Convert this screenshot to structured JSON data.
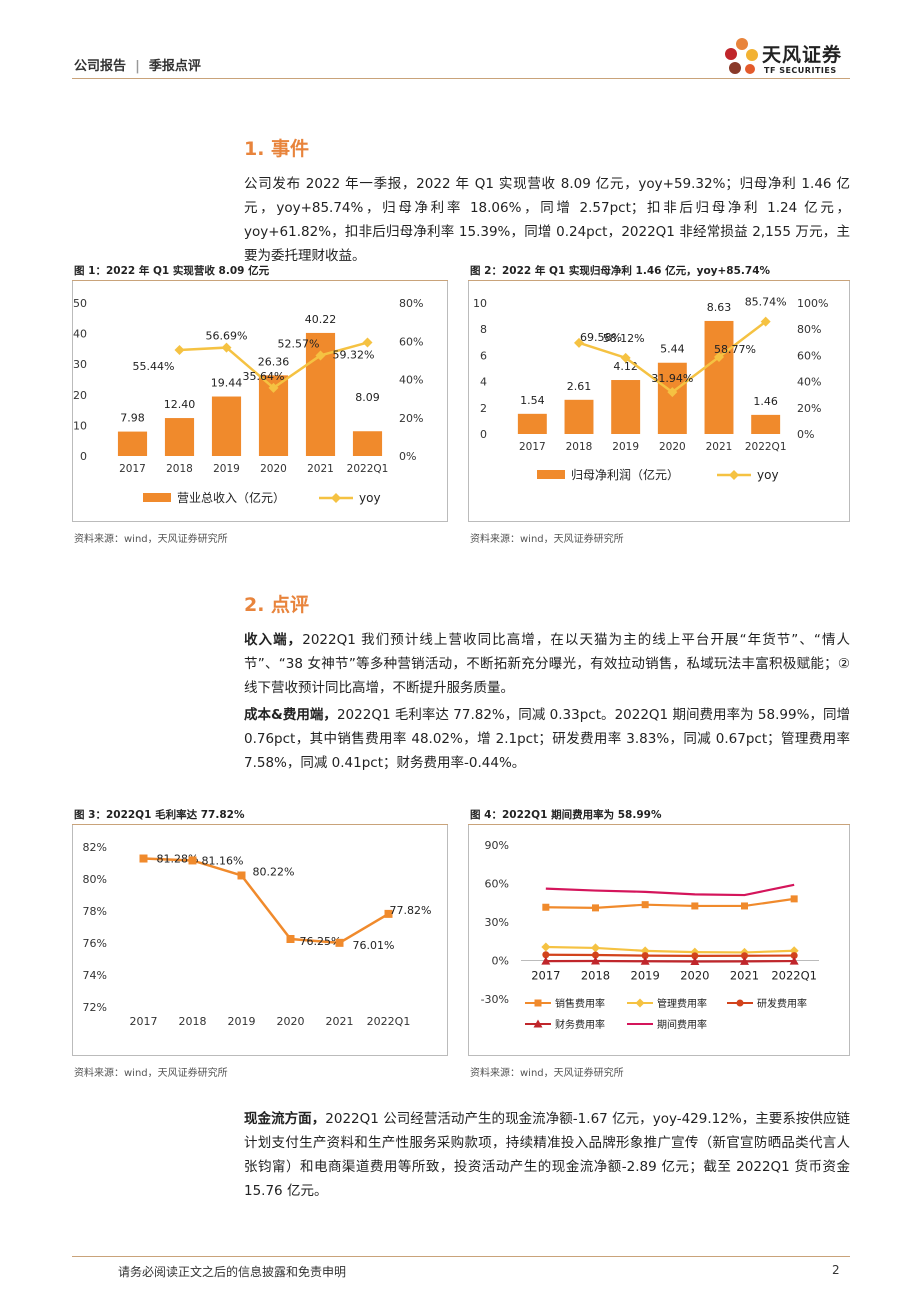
{
  "header": {
    "report_type": "公司报告",
    "sub_type": "季报点评",
    "logo_cn": "天风证券",
    "logo_en": "TF SECURITIES"
  },
  "section1": {
    "title": "1. 事件",
    "body": "公司发布 2022 年一季报，2022 年 Q1 实现营收 8.09 亿元，yoy+59.32%；归母净利 1.46 亿元，yoy+85.74%，归母净利率 18.06%，同增 2.57pct；扣非后归母净利 1.24 亿元，yoy+61.82%，扣非后归母净利率 15.39%，同增 0.24pct，2022Q1 非经常损益 2,155 万元，主要为委托理财收益。"
  },
  "section2": {
    "title": "2. 点评",
    "p1_lead": "收入端，",
    "p1_body": "2022Q1 我们预计线上营收同比高增，在以天猫为主的线上平台开展“年货节”、“情人节”、“38 女神节”等多种营销活动，不断拓新充分曝光，有效拉动销售，私域玩法丰富积极赋能；②线下营收预计同比高增，不断提升服务质量。",
    "p2_lead": "成本&费用端，",
    "p2_body": "2022Q1 毛利率达 77.82%，同减 0.33pct。2022Q1 期间费用率为 58.99%，同增 0.76pct，其中销售费用率 48.02%，增 2.1pct；研发费用率 3.83%，同减 0.67pct；管理费用率 7.58%，同减 0.41pct；财务费用率-0.44%。",
    "p3_lead": "现金流方面，",
    "p3_body": "2022Q1 公司经营活动产生的现金流净额-1.67 亿元，yoy-429.12%，主要系按供应链计划支付生产资料和生产性服务采购款项，持续精准投入品牌形象推广宣传（新官宣防晒品类代言人张钧甯）和电商渠道费用等所致，投资活动产生的现金流净额-2.89 亿元；截至 2022Q1 货币资金 15.76 亿元。"
  },
  "figures": {
    "fig1_title": "图 1：2022 年 Q1 实现营收 8.09 亿元",
    "fig2_title": "图 2：2022 年 Q1 实现归母净利 1.46 亿元，yoy+85.74%",
    "fig3_title": "图 3：2022Q1 毛利率达 77.82%",
    "fig4_title": "图 4：2022Q1 期间费用率为 58.99%",
    "source": "资料来源：wind，天风证券研究所"
  },
  "footer": {
    "disclaimer": "请务必阅读正文之后的信息披露和免责申明",
    "page": "2"
  },
  "colors": {
    "accent": "#e8843c",
    "bar": "#f08a2c",
    "yoy": "#f5c242",
    "sales": "#f08a2c",
    "admin": "#f5c242",
    "rd": "#d2431c",
    "fin": "#c0262b",
    "period": "#d4155b"
  },
  "chart_data": [
    {
      "type": "bar",
      "categories": [
        "2017",
        "2018",
        "2019",
        "2020",
        "2021",
        "2022Q1"
      ],
      "series": [
        {
          "name": "营业总收入（亿元）",
          "values": [
            7.98,
            12.4,
            19.44,
            26.36,
            40.22,
            8.09
          ],
          "labels": [
            "7.98",
            "12.40",
            "19.44",
            "26.36",
            "40.22",
            "8.09"
          ],
          "axis": "left"
        },
        {
          "name": "yoy",
          "type": "line",
          "values": [
            null,
            55.44,
            56.69,
            35.64,
            52.57,
            59.32
          ],
          "labels": [
            "",
            "55.44%",
            "56.69%",
            "35.64%",
            "52.57%",
            "59.32%"
          ],
          "axis": "right"
        }
      ],
      "yticks": [
        "0",
        "10",
        "20",
        "30",
        "40",
        "50"
      ],
      "y2ticks": [
        "0%",
        "20%",
        "40%",
        "60%",
        "80%"
      ],
      "ylim": [
        0,
        50
      ],
      "y2lim": [
        0,
        80
      ],
      "legend": "bottom"
    },
    {
      "type": "bar",
      "categories": [
        "2017",
        "2018",
        "2019",
        "2020",
        "2021",
        "2022Q1"
      ],
      "series": [
        {
          "name": "归母净利润（亿元）",
          "values": [
            1.54,
            2.61,
            4.12,
            5.44,
            8.63,
            1.46
          ],
          "labels": [
            "1.54",
            "2.61",
            "4.12",
            "5.44",
            "8.63",
            "1.46"
          ],
          "axis": "left"
        },
        {
          "name": "yoy",
          "type": "line",
          "values": [
            null,
            69.58,
            58.12,
            31.94,
            58.77,
            85.74
          ],
          "labels": [
            "",
            "69.58%",
            "58.12%",
            "31.94%",
            "58.77%",
            "85.74%"
          ],
          "axis": "right"
        }
      ],
      "yticks": [
        "0",
        "2",
        "4",
        "6",
        "8",
        "10"
      ],
      "y2ticks": [
        "0%",
        "20%",
        "40%",
        "60%",
        "80%",
        "100%"
      ],
      "ylim": [
        0,
        10
      ],
      "y2lim": [
        0,
        100
      ],
      "legend": "bottom"
    },
    {
      "type": "line",
      "categories": [
        "2017",
        "2018",
        "2019",
        "2020",
        "2021",
        "2022Q1"
      ],
      "series": [
        {
          "values": [
            81.28,
            81.16,
            80.22,
            76.25,
            76.01,
            77.82
          ],
          "labels": [
            "81.28%",
            "81.16%",
            "80.22%",
            "76.25%",
            "76.01%",
            "77.82%"
          ]
        }
      ],
      "yticks": [
        "72%",
        "74%",
        "76%",
        "78%",
        "80%",
        "82%"
      ],
      "ylim": [
        72,
        82
      ]
    },
    {
      "type": "line",
      "categories": [
        "2017",
        "2018",
        "2019",
        "2020",
        "2021",
        "2022Q1"
      ],
      "series": [
        {
          "name": "销售费用率",
          "values": [
            41.5,
            41,
            43.5,
            42.5,
            42.5,
            48.02
          ],
          "marker": "square"
        },
        {
          "name": "管理费用率",
          "values": [
            10.5,
            9.8,
            7.5,
            6.5,
            6.3,
            7.58
          ],
          "marker": "diamond"
        },
        {
          "name": "研发费用率",
          "values": [
            4.5,
            4.3,
            3.8,
            3.6,
            3.7,
            3.83
          ],
          "marker": "circle"
        },
        {
          "name": "财务费用率",
          "values": [
            -0.5,
            -0.4,
            -0.6,
            -0.8,
            -0.7,
            -0.44
          ],
          "marker": "triangle"
        },
        {
          "name": "期间费用率",
          "values": [
            56,
            54.5,
            53.5,
            51.5,
            51,
            58.99
          ],
          "marker": "line"
        }
      ],
      "yticks": [
        "-30%",
        "0%",
        "30%",
        "60%",
        "90%"
      ],
      "ylim": [
        -30,
        90
      ],
      "legend": "bottom"
    }
  ]
}
